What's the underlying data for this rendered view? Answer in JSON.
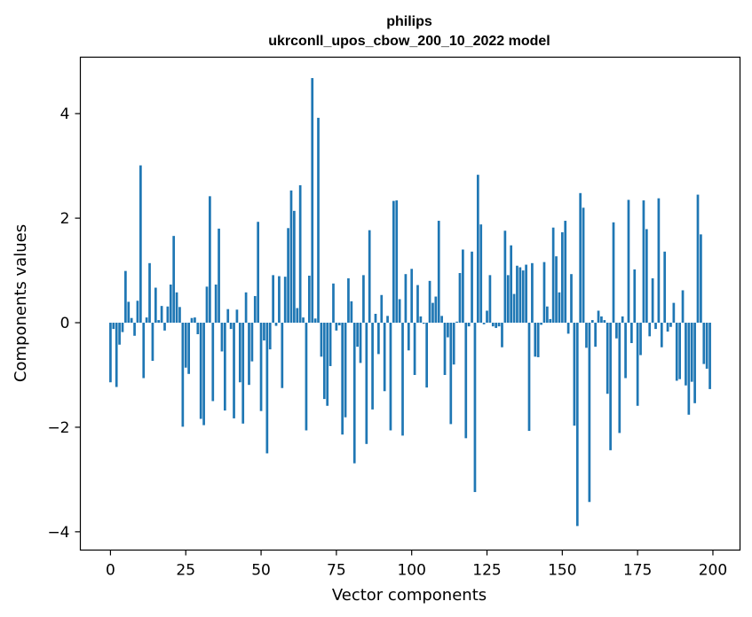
{
  "chart_data": {
    "type": "bar",
    "title": "philips",
    "subtitle": "ukrconll_upos_cbow_200_10_2022 model",
    "xlabel": "Vector components",
    "ylabel": "Components values",
    "xlim": [
      -10,
      209
    ],
    "ylim": [
      -4.35,
      5.08
    ],
    "xticks": [
      0,
      25,
      50,
      75,
      100,
      125,
      150,
      175,
      200
    ],
    "xtick_labels": [
      "0",
      "25",
      "50",
      "75",
      "100",
      "125",
      "150",
      "175",
      "200"
    ],
    "yticks": [
      -4,
      -2,
      0,
      2,
      4
    ],
    "ytick_labels": [
      "−4",
      "−2",
      "0",
      "2",
      "4"
    ],
    "bar_color": "#1f77b4",
    "grid": false,
    "legend": "none",
    "x": [
      0,
      1,
      2,
      3,
      4,
      5,
      6,
      7,
      8,
      9,
      10,
      11,
      12,
      13,
      14,
      15,
      16,
      17,
      18,
      19,
      20,
      21,
      22,
      23,
      24,
      25,
      26,
      27,
      28,
      29,
      30,
      31,
      32,
      33,
      34,
      35,
      36,
      37,
      38,
      39,
      40,
      41,
      42,
      43,
      44,
      45,
      46,
      47,
      48,
      49,
      50,
      51,
      52,
      53,
      54,
      55,
      56,
      57,
      58,
      59,
      60,
      61,
      62,
      63,
      64,
      65,
      66,
      67,
      68,
      69,
      70,
      71,
      72,
      73,
      74,
      75,
      76,
      77,
      78,
      79,
      80,
      81,
      82,
      83,
      84,
      85,
      86,
      87,
      88,
      89,
      90,
      91,
      92,
      93,
      94,
      95,
      96,
      97,
      98,
      99,
      100,
      101,
      102,
      103,
      104,
      105,
      106,
      107,
      108,
      109,
      110,
      111,
      112,
      113,
      114,
      115,
      116,
      117,
      118,
      119,
      120,
      121,
      122,
      123,
      124,
      125,
      126,
      127,
      128,
      129,
      130,
      131,
      132,
      133,
      134,
      135,
      136,
      137,
      138,
      139,
      140,
      141,
      142,
      143,
      144,
      145,
      146,
      147,
      148,
      149,
      150,
      151,
      152,
      153,
      154,
      155,
      156,
      157,
      158,
      159,
      160,
      161,
      162,
      163,
      164,
      165,
      166,
      167,
      168,
      169,
      170,
      171,
      172,
      173,
      174,
      175,
      176,
      177,
      178,
      179,
      180,
      181,
      182,
      183,
      184,
      185,
      186,
      187,
      188,
      189,
      190,
      191,
      192,
      193,
      194,
      195,
      196,
      197,
      198,
      199
    ],
    "values": [
      -1.14,
      -0.12,
      -1.23,
      -0.42,
      -0.18,
      0.99,
      0.4,
      0.09,
      -0.25,
      0.42,
      3.01,
      -1.06,
      0.1,
      1.14,
      -0.73,
      0.67,
      0.05,
      0.32,
      -0.15,
      0.31,
      0.73,
      1.66,
      0.58,
      0.3,
      -1.99,
      -0.86,
      -0.98,
      0.09,
      0.1,
      -0.22,
      -1.84,
      -1.96,
      0.69,
      2.42,
      -1.5,
      0.73,
      1.8,
      -0.55,
      -1.68,
      0.26,
      -0.12,
      -1.83,
      0.25,
      -1.14,
      -1.93,
      0.58,
      -1.19,
      -0.74,
      0.51,
      1.93,
      -1.69,
      -0.34,
      -2.5,
      -0.51,
      0.91,
      -0.06,
      0.89,
      -1.25,
      0.88,
      1.81,
      2.53,
      2.14,
      0.28,
      2.63,
      0.1,
      -2.06,
      0.9,
      4.68,
      0.08,
      3.92,
      -0.65,
      -1.46,
      -1.59,
      -0.83,
      0.75,
      -0.15,
      -0.05,
      -2.14,
      -1.81,
      0.85,
      0.41,
      -2.69,
      -0.46,
      -0.77,
      0.91,
      -2.32,
      1.77,
      -1.66,
      0.17,
      -0.6,
      0.53,
      -1.31,
      0.13,
      -2.06,
      2.33,
      2.34,
      0.45,
      -2.16,
      0.93,
      -0.53,
      1.03,
      -1.0,
      0.72,
      0.12,
      -0.02,
      -1.24,
      0.8,
      0.38,
      0.5,
      1.95,
      0.13,
      -1.0,
      -0.28,
      -1.94,
      -0.8,
      0.02,
      0.95,
      1.4,
      -2.21,
      -0.07,
      1.36,
      -3.24,
      2.83,
      1.88,
      -0.03,
      0.23,
      0.91,
      -0.07,
      -0.1,
      -0.07,
      -0.47,
      1.76,
      0.91,
      1.48,
      0.55,
      1.09,
      1.06,
      1.0,
      1.11,
      -2.07,
      1.14,
      -0.65,
      -0.66,
      -0.04,
      1.16,
      0.31,
      0.07,
      1.82,
      1.27,
      0.58,
      1.73,
      1.95,
      -0.21,
      0.93,
      -1.97,
      -3.89,
      2.48,
      2.2,
      -0.48,
      -3.43,
      0.05,
      -0.46,
      0.23,
      0.12,
      0.05,
      -1.36,
      -2.44,
      1.92,
      -0.3,
      -2.11,
      0.12,
      -1.06,
      2.35,
      -0.39,
      1.02,
      -1.59,
      -0.62,
      2.34,
      1.79,
      -0.26,
      0.85,
      -0.12,
      2.38,
      -0.47,
      1.36,
      -0.17,
      -0.08,
      0.38,
      -1.11,
      -1.08,
      0.62,
      -1.2,
      -1.76,
      -1.13,
      -1.54,
      2.45,
      1.69,
      -0.79,
      -0.88,
      -1.27
    ]
  }
}
